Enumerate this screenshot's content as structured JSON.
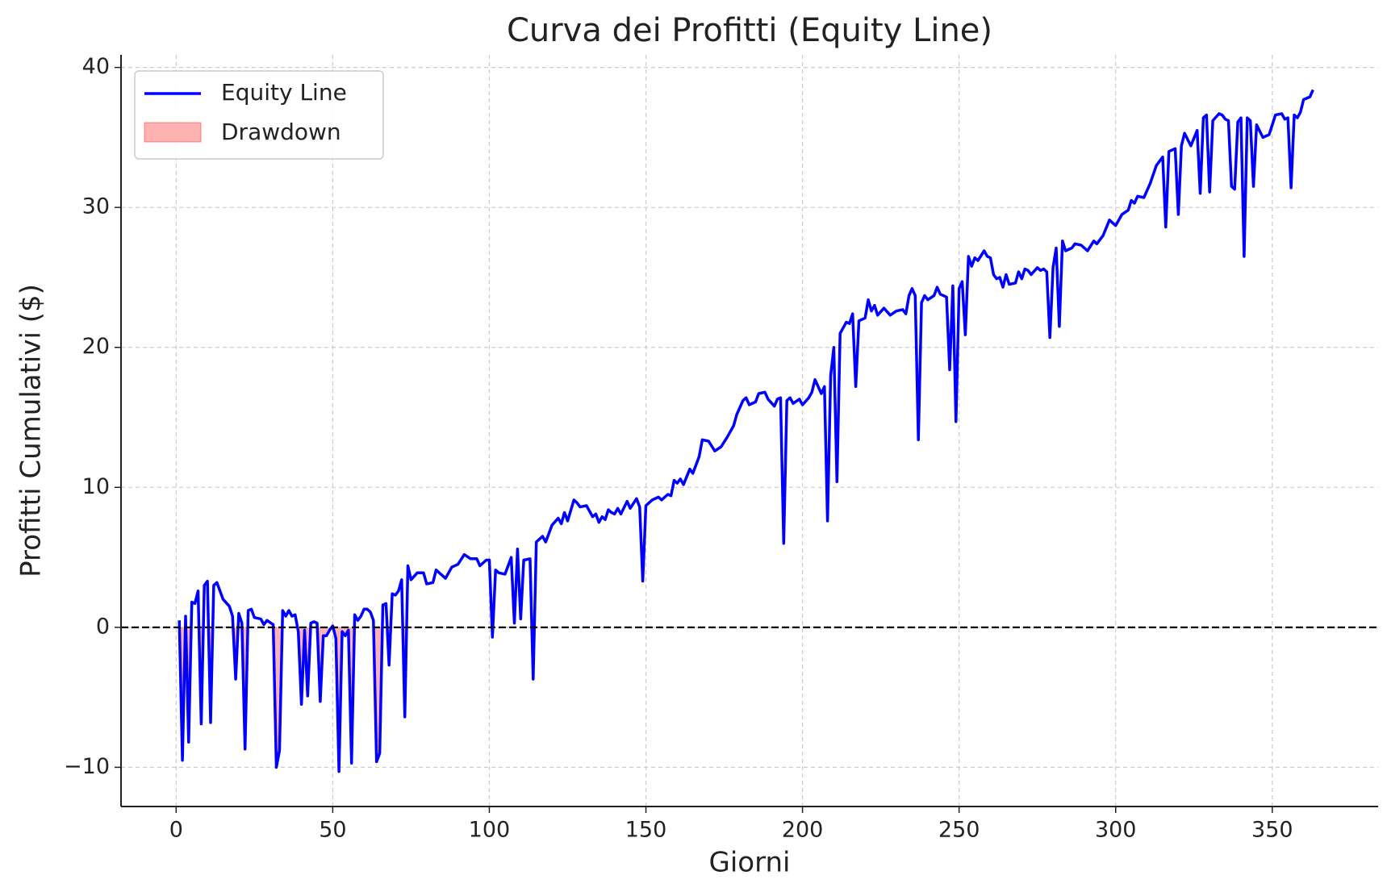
{
  "chart_data": {
    "type": "line",
    "title": "Curva dei Profitti (Equity Line)",
    "x_label": "Giorni",
    "y_label": "Profitti Cumulativi ($)",
    "series": [
      {
        "name": "Equity Line",
        "color": "#0000ff",
        "x": [
          1,
          2,
          3,
          4,
          5,
          6,
          7,
          8,
          9,
          10,
          11,
          12,
          13,
          15,
          17,
          18,
          19,
          20,
          21,
          22,
          23,
          24,
          25,
          27,
          28,
          29,
          31,
          32,
          33,
          34,
          35,
          36,
          37,
          38,
          39,
          40,
          41,
          42,
          43,
          44,
          45,
          46,
          47,
          48,
          49,
          50,
          51,
          52,
          53,
          54,
          55,
          56,
          57,
          58,
          59,
          60,
          61,
          62,
          63,
          64,
          65,
          66,
          67,
          68,
          69,
          70,
          71,
          72,
          73,
          74,
          75,
          77,
          79,
          80,
          82,
          83,
          86,
          88,
          90,
          92,
          94,
          96,
          97,
          99,
          100,
          101,
          102,
          103,
          105,
          107,
          108,
          109,
          110,
          111,
          113,
          114,
          115,
          117,
          118,
          120,
          122,
          123,
          124,
          125,
          127,
          128,
          129,
          131,
          133,
          134,
          135,
          136,
          137,
          138,
          139,
          140,
          141,
          142,
          144,
          145,
          147,
          148,
          149,
          150,
          152,
          154,
          155,
          157,
          158,
          159,
          160,
          161,
          162,
          164,
          165,
          167,
          168,
          170,
          172,
          174,
          176,
          178,
          179,
          181,
          182,
          183,
          185,
          186,
          188,
          189,
          191,
          192,
          193,
          194,
          195,
          196,
          197,
          199,
          200,
          202,
          203,
          204,
          205,
          206,
          207,
          208,
          209,
          210,
          211,
          212,
          214,
          215,
          216,
          217,
          218,
          220,
          221,
          222,
          223,
          224,
          226,
          228,
          230,
          232,
          233,
          234,
          235,
          236,
          237,
          238,
          239,
          240,
          242,
          243,
          244,
          246,
          247,
          248,
          249,
          250,
          251,
          252,
          253,
          254,
          255,
          256,
          258,
          259,
          260,
          261,
          262,
          263,
          264,
          265,
          266,
          268,
          269,
          270,
          271,
          272,
          273,
          275,
          276,
          277,
          278,
          279,
          280,
          281,
          282,
          283,
          284,
          286,
          287,
          289,
          291,
          293,
          294,
          296,
          298,
          299,
          300,
          302,
          304,
          305,
          306,
          307,
          309,
          311,
          313,
          315,
          316,
          317,
          319,
          320,
          321,
          322,
          324,
          326,
          327,
          328,
          329,
          330,
          331,
          333,
          334,
          335,
          336,
          337,
          338,
          339,
          340,
          341,
          342,
          343,
          344,
          345,
          347,
          349,
          350,
          351,
          353,
          354,
          355,
          356,
          357,
          358,
          359,
          360,
          362,
          363
        ],
        "values": [
          0.5,
          -9.5,
          0.8,
          -8.2,
          1.8,
          1.7,
          2.6,
          -6.9,
          3.0,
          3.3,
          -6.8,
          3.0,
          3.2,
          2.0,
          1.5,
          0.8,
          -3.7,
          1.0,
          0.3,
          -8.7,
          1.2,
          1.3,
          0.7,
          0.6,
          0.2,
          0.5,
          0.2,
          -10.0,
          -8.8,
          1.2,
          0.8,
          1.2,
          0.8,
          0.9,
          -0.3,
          -5.5,
          -0.2,
          -4.9,
          0.3,
          0.4,
          0.3,
          -5.3,
          -0.6,
          -0.6,
          -0.2,
          0.1,
          -0.8,
          -10.3,
          -0.3,
          -0.6,
          -0.2,
          -9.7,
          0.9,
          0.5,
          0.8,
          1.3,
          1.3,
          1.1,
          0.5,
          -9.6,
          -9.0,
          1.6,
          1.7,
          -2.7,
          2.4,
          2.3,
          2.6,
          3.4,
          -6.4,
          4.4,
          3.4,
          3.9,
          3.9,
          3.1,
          3.2,
          4.1,
          3.5,
          4.3,
          4.5,
          5.2,
          4.9,
          4.9,
          4.4,
          4.8,
          4.8,
          -0.7,
          4.1,
          3.9,
          3.8,
          5.0,
          0.3,
          5.6,
          0.6,
          4.8,
          4.9,
          -3.7,
          6.1,
          6.5,
          6.1,
          7.3,
          7.8,
          7.4,
          8.2,
          7.6,
          9.1,
          8.9,
          8.6,
          8.7,
          7.9,
          8.1,
          7.5,
          7.9,
          7.7,
          8.4,
          8.2,
          8.1,
          8.5,
          8.1,
          9.0,
          8.5,
          9.2,
          8.6,
          3.3,
          8.7,
          9.1,
          9.3,
          9.1,
          9.5,
          9.4,
          10.5,
          10.3,
          10.6,
          10.2,
          11.3,
          11.0,
          12.2,
          13.4,
          13.3,
          12.6,
          12.9,
          13.6,
          14.4,
          15.2,
          16.2,
          16.4,
          15.9,
          16.1,
          16.7,
          16.8,
          16.3,
          15.8,
          16.3,
          16.4,
          6.0,
          16.2,
          16.4,
          16.0,
          16.3,
          15.9,
          16.4,
          16.8,
          17.7,
          17.2,
          16.7,
          17.2,
          7.6,
          18.0,
          20.0,
          10.4,
          21.0,
          21.8,
          21.7,
          22.4,
          17.2,
          21.9,
          22.1,
          23.4,
          22.6,
          23.0,
          22.3,
          22.8,
          22.3,
          22.6,
          22.7,
          22.4,
          23.7,
          24.2,
          23.7,
          13.4,
          23.2,
          23.7,
          23.4,
          23.7,
          24.3,
          23.8,
          23.6,
          18.4,
          24.4,
          14.7,
          24.2,
          24.7,
          20.9,
          26.5,
          25.8,
          26.4,
          26.2,
          26.9,
          26.5,
          26.4,
          25.2,
          24.9,
          25.0,
          24.3,
          25.2,
          24.5,
          24.6,
          25.4,
          24.9,
          25.6,
          25.5,
          25.2,
          25.7,
          25.5,
          25.6,
          25.4,
          20.7,
          25.7,
          27.1,
          21.5,
          27.6,
          26.9,
          27.1,
          27.4,
          27.3,
          26.9,
          27.6,
          27.4,
          28.0,
          29.1,
          28.9,
          28.7,
          29.5,
          29.8,
          30.5,
          30.3,
          30.8,
          30.7,
          31.7,
          33.0,
          33.6,
          28.6,
          34.0,
          34.2,
          29.5,
          34.4,
          35.3,
          34.4,
          35.5,
          31.0,
          36.4,
          36.6,
          31.1,
          36.2,
          36.7,
          36.6,
          36.3,
          36.2,
          31.5,
          31.3,
          36.1,
          36.4,
          26.5,
          36.4,
          36.2,
          31.5,
          35.9,
          35.0,
          35.2,
          35.9,
          36.6,
          36.7,
          36.3,
          36.4,
          31.4,
          36.6,
          36.4,
          36.8,
          37.7,
          37.9,
          38.4
        ]
      }
    ],
    "drawdown": {
      "name": "Drawdown",
      "color": "#ff0000"
    },
    "hline": {
      "value": 0,
      "color": "#000000"
    },
    "xlim": [
      -17.6,
      383.8
    ],
    "ylim": [
      -12.8,
      40.9
    ],
    "xticks": [
      0,
      50,
      100,
      150,
      200,
      250,
      300,
      350
    ],
    "yticks": [
      {
        "value": -10,
        "label": "−10"
      },
      0,
      10,
      20,
      30,
      40
    ],
    "grid": true,
    "legend": "upper left"
  }
}
